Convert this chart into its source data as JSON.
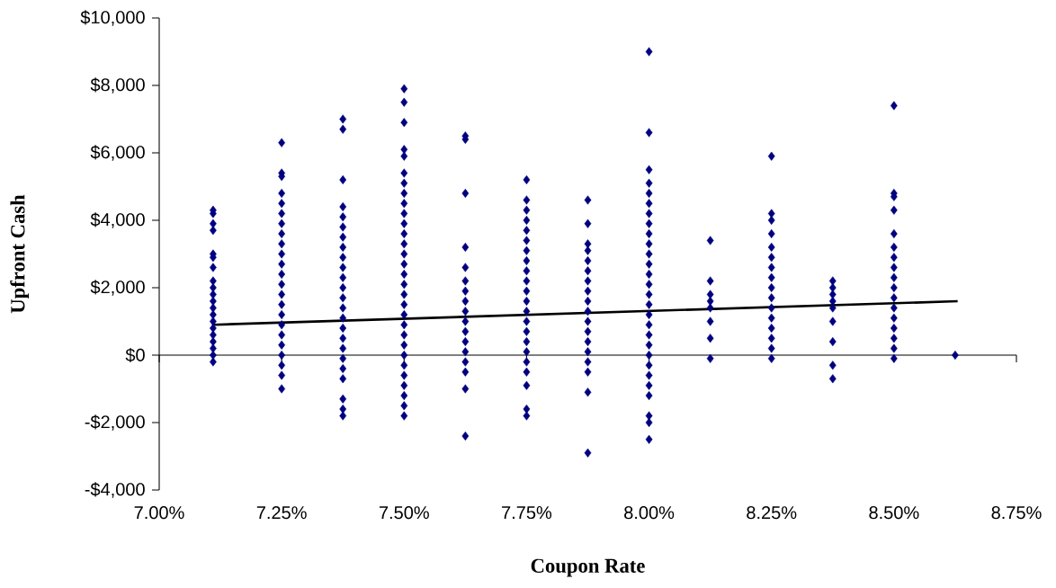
{
  "chart_data": {
    "type": "scatter",
    "xlabel": "Coupon Rate",
    "ylabel": "Upfront Cash",
    "marker": "diamond",
    "xlim": [
      7.0,
      8.75
    ],
    "ylim": [
      -4000,
      10000
    ],
    "xticks": [
      {
        "value": 7.0,
        "label": "7.00%"
      },
      {
        "value": 7.25,
        "label": "7.25%"
      },
      {
        "value": 7.5,
        "label": "7.50%"
      },
      {
        "value": 7.75,
        "label": "7.75%"
      },
      {
        "value": 8.0,
        "label": "8.00%"
      },
      {
        "value": 8.25,
        "label": "8.25%"
      },
      {
        "value": 8.5,
        "label": "8.50%"
      },
      {
        "value": 8.75,
        "label": "8.75%"
      }
    ],
    "yticks": [
      {
        "value": -4000,
        "label": "-$4,000"
      },
      {
        "value": -2000,
        "label": "-$2,000"
      },
      {
        "value": 0,
        "label": "$0"
      },
      {
        "value": 2000,
        "label": "$2,000"
      },
      {
        "value": 4000,
        "label": "$4,000"
      },
      {
        "value": 6000,
        "label": "$6,000"
      },
      {
        "value": 8000,
        "label": "$8,000"
      },
      {
        "value": 10000,
        "label": "$10,000"
      }
    ],
    "series": [
      {
        "color": "#000080",
        "x": [
          7.11,
          7.11,
          7.11,
          7.11,
          7.11,
          7.11,
          7.11,
          7.11,
          7.11,
          7.11,
          7.11,
          7.11,
          7.11,
          7.11,
          7.11,
          7.11,
          7.11,
          7.11,
          7.11,
          7.11
        ],
        "values": [
          -200,
          0,
          200,
          400,
          600,
          800,
          1000,
          1200,
          1400,
          1600,
          1800,
          2000,
          2200,
          2600,
          2900,
          3000,
          3700,
          3900,
          4200,
          4300
        ]
      },
      {
        "color": "#000080",
        "x": [
          7.25,
          7.25,
          7.25,
          7.25,
          7.25,
          7.25,
          7.25,
          7.25,
          7.25,
          7.25,
          7.25,
          7.25,
          7.25,
          7.25,
          7.25,
          7.25,
          7.25,
          7.25,
          7.25,
          7.25,
          7.25,
          7.25,
          7.25
        ],
        "values": [
          -1000,
          -600,
          -300,
          0,
          300,
          600,
          900,
          1200,
          1500,
          1800,
          2100,
          2400,
          2700,
          3000,
          3300,
          3600,
          3900,
          4200,
          4500,
          4800,
          5300,
          5400,
          6300
        ]
      },
      {
        "color": "#000080",
        "x": [
          7.375,
          7.375,
          7.375,
          7.375,
          7.375,
          7.375,
          7.375,
          7.375,
          7.375,
          7.375,
          7.375,
          7.375,
          7.375,
          7.375,
          7.375,
          7.375,
          7.375,
          7.375,
          7.375,
          7.375,
          7.375,
          7.375,
          7.375,
          7.375
        ],
        "values": [
          -1800,
          -1600,
          -1300,
          -700,
          -400,
          -100,
          200,
          500,
          800,
          1100,
          1400,
          1700,
          2000,
          2300,
          2600,
          2900,
          3200,
          3500,
          3800,
          4100,
          4400,
          5200,
          6700,
          7000
        ]
      },
      {
        "color": "#000080",
        "x": [
          7.5,
          7.5,
          7.5,
          7.5,
          7.5,
          7.5,
          7.5,
          7.5,
          7.5,
          7.5,
          7.5,
          7.5,
          7.5,
          7.5,
          7.5,
          7.5,
          7.5,
          7.5,
          7.5,
          7.5,
          7.5,
          7.5,
          7.5,
          7.5,
          7.5,
          7.5,
          7.5,
          7.5,
          7.5,
          7.5
        ],
        "values": [
          -1800,
          -1500,
          -1200,
          -900,
          -600,
          -300,
          0,
          300,
          600,
          900,
          1200,
          1500,
          1800,
          2100,
          2400,
          2700,
          3000,
          3300,
          3600,
          3900,
          4200,
          4500,
          4800,
          5100,
          5400,
          5900,
          6100,
          6900,
          7500,
          7900
        ]
      },
      {
        "color": "#000080",
        "x": [
          7.625,
          7.625,
          7.625,
          7.625,
          7.625,
          7.625,
          7.625,
          7.625,
          7.625,
          7.625,
          7.625,
          7.625,
          7.625,
          7.625,
          7.625,
          7.625,
          7.625
        ],
        "values": [
          -2400,
          -1000,
          -500,
          -200,
          100,
          400,
          700,
          1000,
          1300,
          1600,
          1900,
          2200,
          2600,
          3200,
          4800,
          6400,
          6500
        ]
      },
      {
        "color": "#000080",
        "x": [
          7.75,
          7.75,
          7.75,
          7.75,
          7.75,
          7.75,
          7.75,
          7.75,
          7.75,
          7.75,
          7.75,
          7.75,
          7.75,
          7.75,
          7.75,
          7.75,
          7.75,
          7.75,
          7.75,
          7.75,
          7.75,
          7.75
        ],
        "values": [
          -1800,
          -1600,
          -900,
          -500,
          -200,
          100,
          400,
          700,
          1000,
          1300,
          1600,
          1900,
          2200,
          2500,
          2800,
          3100,
          3400,
          3700,
          4000,
          4300,
          4600,
          5200
        ]
      },
      {
        "color": "#000080",
        "x": [
          7.875,
          7.875,
          7.875,
          7.875,
          7.875,
          7.875,
          7.875,
          7.875,
          7.875,
          7.875,
          7.875,
          7.875,
          7.875,
          7.875,
          7.875,
          7.875,
          7.875,
          7.875
        ],
        "values": [
          -2900,
          -1100,
          -500,
          -200,
          100,
          400,
          700,
          1000,
          1300,
          1600,
          1900,
          2200,
          2500,
          2800,
          3100,
          3300,
          3900,
          4600
        ]
      },
      {
        "color": "#000080",
        "x": [
          8.0,
          8.0,
          8.0,
          8.0,
          8.0,
          8.0,
          8.0,
          8.0,
          8.0,
          8.0,
          8.0,
          8.0,
          8.0,
          8.0,
          8.0,
          8.0,
          8.0,
          8.0,
          8.0,
          8.0,
          8.0,
          8.0,
          8.0,
          8.0,
          8.0,
          8.0,
          8.0,
          8.0
        ],
        "values": [
          -2500,
          -2000,
          -1800,
          -1200,
          -900,
          -600,
          -300,
          0,
          300,
          600,
          900,
          1200,
          1500,
          1800,
          2100,
          2400,
          2700,
          3000,
          3300,
          3600,
          3900,
          4200,
          4500,
          4800,
          5100,
          5500,
          6600,
          9000
        ]
      },
      {
        "color": "#000080",
        "x": [
          8.125,
          8.125,
          8.125,
          8.125,
          8.125,
          8.125,
          8.125,
          8.125
        ],
        "values": [
          -100,
          500,
          1000,
          1400,
          1600,
          1800,
          2200,
          3400
        ]
      },
      {
        "color": "#000080",
        "x": [
          8.25,
          8.25,
          8.25,
          8.25,
          8.25,
          8.25,
          8.25,
          8.25,
          8.25,
          8.25,
          8.25,
          8.25,
          8.25,
          8.25,
          8.25,
          8.25
        ],
        "values": [
          -100,
          200,
          500,
          800,
          1100,
          1400,
          1700,
          2000,
          2300,
          2600,
          2900,
          3200,
          3600,
          4000,
          4200,
          5900
        ]
      },
      {
        "color": "#000080",
        "x": [
          8.375,
          8.375,
          8.375,
          8.375,
          8.375,
          8.375,
          8.375,
          8.375,
          8.375
        ],
        "values": [
          -700,
          -300,
          400,
          1000,
          1400,
          1600,
          1800,
          2000,
          2200
        ]
      },
      {
        "color": "#000080",
        "x": [
          8.5,
          8.5,
          8.5,
          8.5,
          8.5,
          8.5,
          8.5,
          8.5,
          8.5,
          8.5,
          8.5,
          8.5,
          8.5,
          8.5,
          8.5,
          8.5,
          8.5
        ],
        "values": [
          -100,
          200,
          500,
          800,
          1100,
          1400,
          1700,
          2000,
          2300,
          2600,
          2900,
          3200,
          3600,
          4300,
          4700,
          4800,
          7400
        ]
      },
      {
        "color": "#000080",
        "x": [
          8.625
        ],
        "values": [
          0
        ]
      },
      {
        "type": "line",
        "color": "#000000",
        "marker": "none",
        "x": [
          7.11,
          8.63
        ],
        "values": [
          900,
          1600
        ]
      }
    ]
  }
}
